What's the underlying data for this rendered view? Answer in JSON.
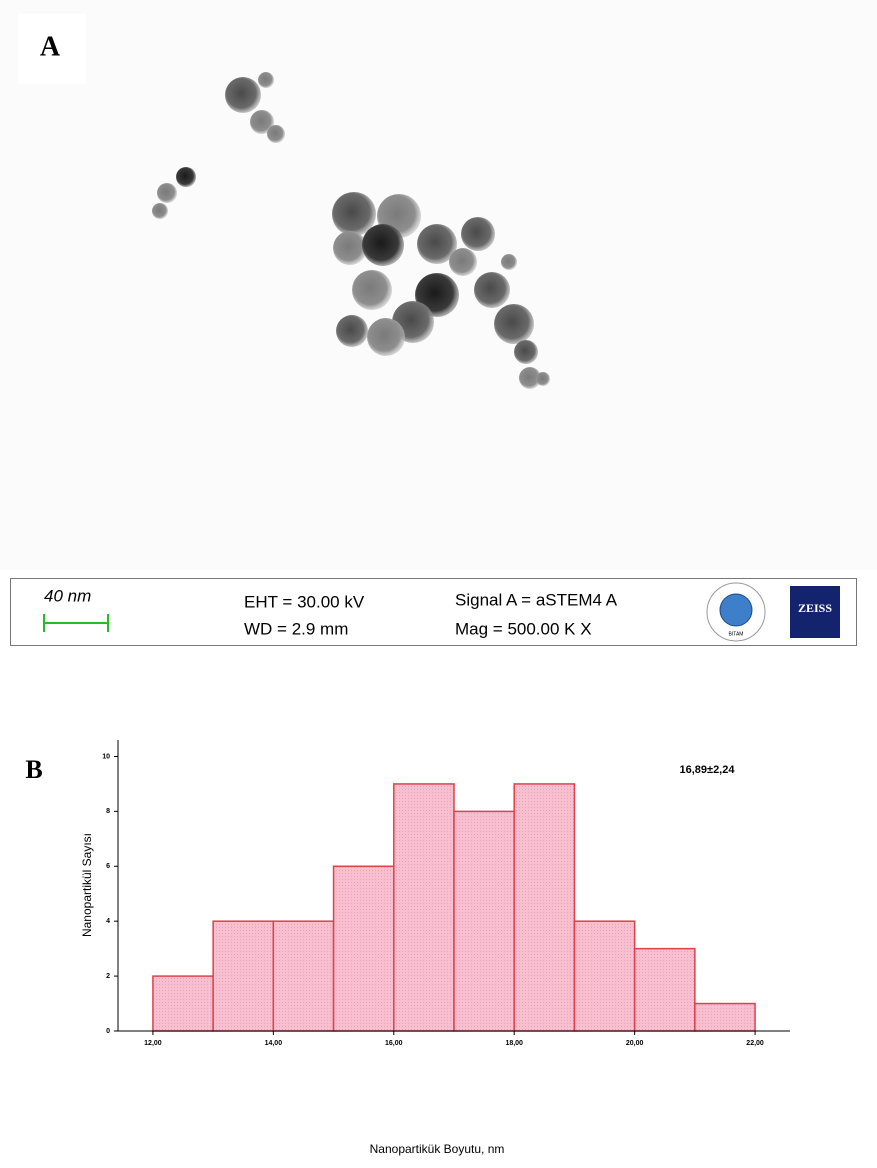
{
  "panel_a": {
    "label": "A",
    "scale_bar": "40 nm",
    "eht": "EHT = 30.00 kV",
    "wd": "WD =  2.9 mm",
    "signal": "Signal A = aSTEM4 A",
    "mag": "Mag =  500.00 K X",
    "logo_text": "BITAM",
    "brand": "ZEISS"
  },
  "panel_b_label": "B",
  "chart_data": {
    "type": "histogram",
    "x_label": "Nanopartikük Boyutu, nm",
    "y_label": "Nanopartikül Sayısı",
    "annotation": "16,89±2,24",
    "bins": [
      12,
      13,
      14,
      15,
      16,
      17,
      18,
      19,
      20,
      21,
      22
    ],
    "values": [
      2,
      4,
      4,
      6,
      9,
      8,
      9,
      4,
      3,
      1
    ],
    "color": "#f7bfd0",
    "edge_color": "#e0404a",
    "xlim": [
      11.42,
      22.58
    ],
    "ylim": [
      0,
      10.6
    ],
    "xticks": [
      {
        "value": 12,
        "label": "12,00"
      },
      {
        "value": 14,
        "label": "14,00"
      },
      {
        "value": 16,
        "label": "16,00"
      },
      {
        "value": 18,
        "label": "18,00"
      },
      {
        "value": 20,
        "label": "20,00"
      },
      {
        "value": 22,
        "label": "22,00"
      }
    ],
    "yticks": [
      0,
      2,
      4,
      6,
      8,
      10
    ]
  }
}
